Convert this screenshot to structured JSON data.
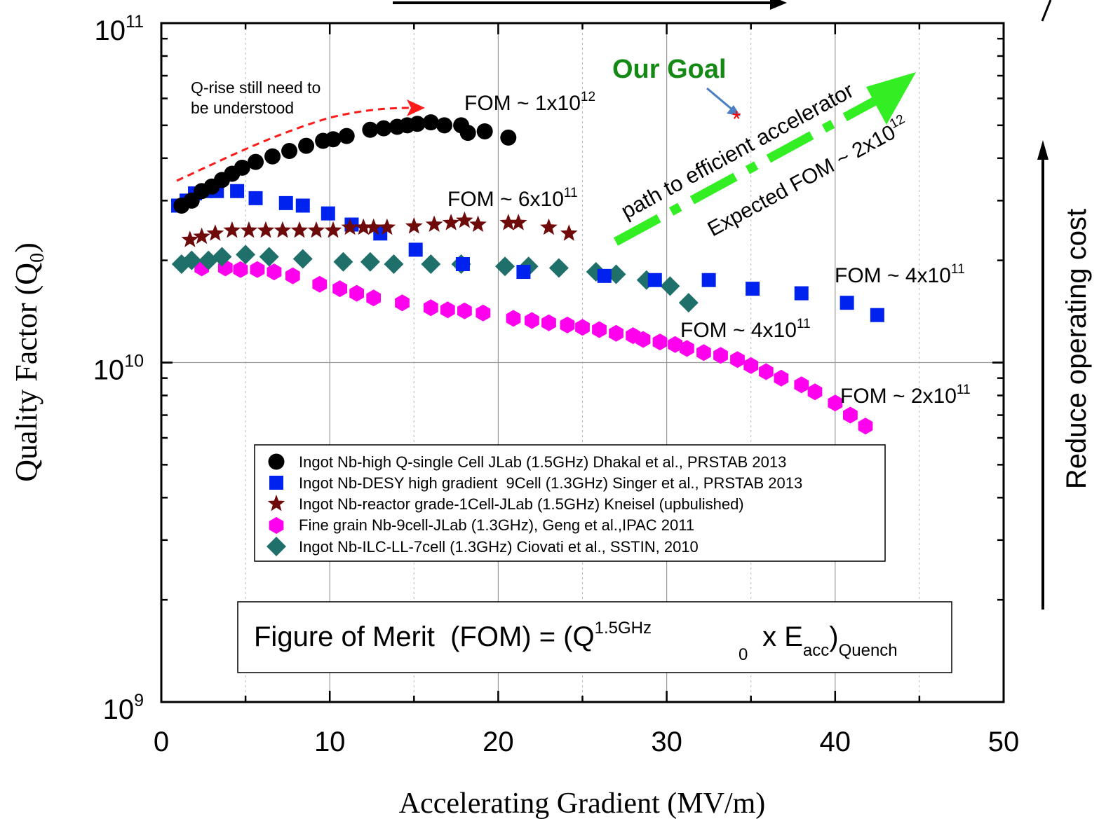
{
  "chart_data": {
    "type": "scatter",
    "xlabel": "Accelerating Gradient (MV/m)",
    "ylabel": "Quality Factor (Q",
    "ylabel_sub": "0",
    "ylabel_close": ")",
    "xlim": [
      0,
      50
    ],
    "ylim": [
      1000000000.0,
      100000000000.0
    ],
    "yscale": "log",
    "grid": true,
    "x_ticks": [
      {
        "v": 0,
        "label": "0"
      },
      {
        "v": 10,
        "label": "10"
      },
      {
        "v": 20,
        "label": "20"
      },
      {
        "v": 30,
        "label": "30"
      },
      {
        "v": 40,
        "label": "40"
      },
      {
        "v": 50,
        "label": "50"
      }
    ],
    "y_ticks": [
      {
        "v": 1000000000.0,
        "base": "10",
        "exp": "9"
      },
      {
        "v": 10000000000.0,
        "base": "10",
        "exp": "10"
      },
      {
        "v": 100000000000.0,
        "base": "10",
        "exp": "11"
      }
    ],
    "legend_position": "center",
    "series": [
      {
        "name": "Ingot Nb-high Q-single Cell JLab (1.5GHz) Dhakal et al., PRSTAB 2013",
        "marker": "circle",
        "color": "#000000",
        "points": [
          [
            1.2,
            29000000000.0
          ],
          [
            1.8,
            30000000000.0
          ],
          [
            2.4,
            32000000000.0
          ],
          [
            3.0,
            33000000000.0
          ],
          [
            3.6,
            34500000000.0
          ],
          [
            4.2,
            36000000000.0
          ],
          [
            4.8,
            37500000000.0
          ],
          [
            5.6,
            39000000000.0
          ],
          [
            6.6,
            40500000000.0
          ],
          [
            7.6,
            42000000000.0
          ],
          [
            8.6,
            43500000000.0
          ],
          [
            9.6,
            45000000000.0
          ],
          [
            10.2,
            45500000000.0
          ],
          [
            11.0,
            46500000000.0
          ],
          [
            12.4,
            48500000000.0
          ],
          [
            13.2,
            49000000000.0
          ],
          [
            14.0,
            49500000000.0
          ],
          [
            14.6,
            50000000000.0
          ],
          [
            15.2,
            50500000000.0
          ],
          [
            16.0,
            51000000000.0
          ],
          [
            16.8,
            50000000000.0
          ],
          [
            17.8,
            50000000000.0
          ],
          [
            18.2,
            47500000000.0
          ],
          [
            19.2,
            48000000000.0
          ],
          [
            20.6,
            46000000000.0
          ]
        ]
      },
      {
        "name": "Ingot Nb-DESY high gradient  9Cell (1.3GHz) Singer et al., PRSTAB 2013",
        "marker": "square",
        "color": "#0022ee",
        "points": [
          [
            1.0,
            29000000000.0
          ],
          [
            1.5,
            30000000000.0
          ],
          [
            2.0,
            31500000000.0
          ],
          [
            2.6,
            32000000000.0
          ],
          [
            3.3,
            32000000000.0
          ],
          [
            4.5,
            32000000000.0
          ],
          [
            5.6,
            30500000000.0
          ],
          [
            7.4,
            29500000000.0
          ],
          [
            8.4,
            29000000000.0
          ],
          [
            9.9,
            27500000000.0
          ],
          [
            11.3,
            25500000000.0
          ],
          [
            13.0,
            24000000000.0
          ],
          [
            15.1,
            21500000000.0
          ],
          [
            17.9,
            19500000000.0
          ],
          [
            21.5,
            18500000000.0
          ],
          [
            26.3,
            18000000000.0
          ],
          [
            29.3,
            17500000000.0
          ],
          [
            32.5,
            17500000000.0
          ],
          [
            35.1,
            16500000000.0
          ],
          [
            38.0,
            16000000000.0
          ],
          [
            40.7,
            15000000000.0
          ],
          [
            42.5,
            13800000000.0
          ]
        ]
      },
      {
        "name": "Ingot Nb-reactor grade-1Cell-JLab (1.5GHz) Kneisel (upbulished)",
        "marker": "star",
        "color": "#6e0a0a",
        "points": [
          [
            1.7,
            23000000000.0
          ],
          [
            2.4,
            23500000000.0
          ],
          [
            3.2,
            24000000000.0
          ],
          [
            4.2,
            24500000000.0
          ],
          [
            5.2,
            24500000000.0
          ],
          [
            6.2,
            24500000000.0
          ],
          [
            7.2,
            24500000000.0
          ],
          [
            8.2,
            24500000000.0
          ],
          [
            9.2,
            24500000000.0
          ],
          [
            10.2,
            24500000000.0
          ],
          [
            11.2,
            25000000000.0
          ],
          [
            12.0,
            25000000000.0
          ],
          [
            12.6,
            25000000000.0
          ],
          [
            13.4,
            25000000000.0
          ],
          [
            15.0,
            25200000000.0
          ],
          [
            16.2,
            25500000000.0
          ],
          [
            17.2,
            25800000000.0
          ],
          [
            18.0,
            26200000000.0
          ],
          [
            18.8,
            25500000000.0
          ],
          [
            20.6,
            25800000000.0
          ],
          [
            21.2,
            25800000000.0
          ],
          [
            23.0,
            25000000000.0
          ],
          [
            24.2,
            24000000000.0
          ]
        ]
      },
      {
        "name": "Fine grain Nb-9cell-JLab (1.3GHz), Geng et al.,IPAC 2011",
        "marker": "hexagon",
        "color": "#ff00ee",
        "points": [
          [
            2.4,
            19000000000.0
          ],
          [
            3.8,
            19000000000.0
          ],
          [
            4.7,
            18800000000.0
          ],
          [
            5.7,
            18800000000.0
          ],
          [
            6.7,
            18500000000.0
          ],
          [
            7.8,
            18000000000.0
          ],
          [
            9.4,
            17000000000.0
          ],
          [
            10.6,
            16500000000.0
          ],
          [
            11.6,
            16000000000.0
          ],
          [
            12.6,
            15500000000.0
          ],
          [
            14.3,
            15000000000.0
          ],
          [
            16.0,
            14500000000.0
          ],
          [
            17.0,
            14300000000.0
          ],
          [
            18.0,
            14200000000.0
          ],
          [
            19.1,
            14000000000.0
          ],
          [
            20.9,
            13500000000.0
          ],
          [
            22.0,
            13300000000.0
          ],
          [
            23.0,
            13100000000.0
          ],
          [
            24.1,
            12900000000.0
          ],
          [
            25.0,
            12700000000.0
          ],
          [
            26.0,
            12500000000.0
          ],
          [
            27.0,
            12200000000.0
          ],
          [
            28.0,
            12000000000.0
          ],
          [
            28.6,
            11700000000.0
          ],
          [
            29.6,
            11500000000.0
          ],
          [
            30.5,
            11300000000.0
          ],
          [
            31.2,
            11000000000.0
          ],
          [
            32.2,
            10700000000.0
          ],
          [
            33.2,
            10500000000.0
          ],
          [
            34.2,
            10200000000.0
          ],
          [
            35.0,
            9800000000.0
          ],
          [
            35.9,
            9400000000.0
          ],
          [
            36.8,
            9000000000.0
          ],
          [
            38.0,
            8600000000.0
          ],
          [
            38.8,
            8200000000.0
          ],
          [
            40.0,
            7600000000.0
          ],
          [
            40.9,
            7000000000.0
          ],
          [
            41.8,
            6500000000.0
          ]
        ]
      },
      {
        "name": "Ingot Nb-ILC-LL-7cell (1.3GHz) Ciovati et al., SSTIN, 2010",
        "marker": "diamond",
        "color": "#1f6f6a",
        "points": [
          [
            1.2,
            19500000000.0
          ],
          [
            1.8,
            20000000000.0
          ],
          [
            2.8,
            20000000000.0
          ],
          [
            3.6,
            20500000000.0
          ],
          [
            5.0,
            20800000000.0
          ],
          [
            6.4,
            20500000000.0
          ],
          [
            8.4,
            20200000000.0
          ],
          [
            10.8,
            19800000000.0
          ],
          [
            12.4,
            19800000000.0
          ],
          [
            13.8,
            19500000000.0
          ],
          [
            16.0,
            19500000000.0
          ],
          [
            17.8,
            19500000000.0
          ],
          [
            20.4,
            19200000000.0
          ],
          [
            21.8,
            19200000000.0
          ],
          [
            23.6,
            19000000000.0
          ],
          [
            25.8,
            18500000000.0
          ],
          [
            27.0,
            18200000000.0
          ],
          [
            28.8,
            17500000000.0
          ],
          [
            30.2,
            16800000000.0
          ],
          [
            31.3,
            15000000000.0
          ]
        ]
      }
    ],
    "annotations": {
      "fom1": "FOM ~ 1x10",
      "fom1_exp": "12",
      "fom2": "FOM ~ 6x10",
      "fom2_exp": "11",
      "fom3": "FOM ~ 4x10",
      "fom3_exp": "11",
      "fom4": "FOM ~ 4x10",
      "fom4_exp": "11",
      "fom5": "FOM ~ 2x10",
      "fom5_exp": "11",
      "q_rise_line1": "Q-rise still need to",
      "q_rise_line2": "be understood",
      "our_goal": "Our Goal",
      "goal_marker": "*",
      "path_text": "path to efficient accelerator",
      "expected_fom": "Expected FOM ~ 2x10",
      "expected_fom_exp": "12",
      "reduce_cost": "Reduce operating cost"
    },
    "formula": {
      "prefix": "Figure of Merit  (FOM) = (Q",
      "sup": "1.5GHz",
      "sub0": "0",
      "mid": " x E",
      "sub_acc": "acc",
      "close": ")",
      "sub_quench": "Quench"
    },
    "colors": {
      "red_arrow": "#ff1a1a",
      "goal_green": "#148a14",
      "path_green": "#33ee22",
      "goal_arrow": "#4a7fc1",
      "goal_star": "#ff0000"
    }
  }
}
